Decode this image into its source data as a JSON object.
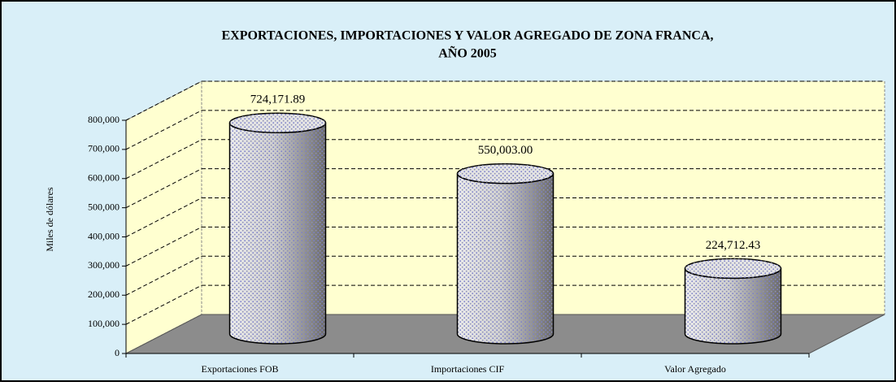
{
  "chart_data": {
    "type": "bar",
    "title": "EXPORTACIONES, IMPORTACIONES Y VALOR AGREGADO DE  ZONA  FRANCA,",
    "subtitle": "AÑO 2005",
    "y_label": "Miles de dólares",
    "categories": [
      "Exportaciones FOB",
      "Importaciones CIF",
      "Valor Agregado"
    ],
    "values": [
      724171.89,
      550003.0,
      224712.43
    ],
    "value_labels": [
      "724,171.89",
      "550,003.00",
      "224,712.43"
    ],
    "ylim": [
      0,
      800000
    ],
    "yticks": [
      0,
      {
        "value": 100000,
        "label": "100,000"
      },
      {
        "value": 200000,
        "label": "200,000"
      },
      {
        "value": 300000,
        "label": "300,000"
      },
      {
        "value": 400000,
        "label": "400,000"
      },
      {
        "value": 500000,
        "label": "500,000"
      },
      {
        "value": 600000,
        "label": "600,000"
      },
      {
        "value": 700000,
        "label": "700,000"
      },
      {
        "value": 800000,
        "label": "800,000"
      }
    ],
    "grid": true
  }
}
